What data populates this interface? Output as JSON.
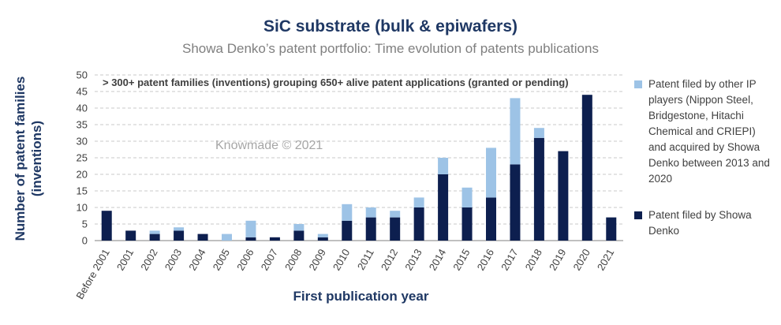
{
  "chart_data": {
    "type": "bar",
    "stacked": true,
    "title": "SiC substrate (bulk & epiwafers)",
    "subtitle": "Showa Denko’s patent portfolio: Time evolution of patents publications",
    "xlabel": "First publication year",
    "ylabel_lines": [
      "Number of patent families",
      "(inventions)"
    ],
    "ylim": [
      0,
      50
    ],
    "yticks": [
      0,
      5,
      10,
      15,
      20,
      25,
      30,
      35,
      40,
      45,
      50
    ],
    "grid": true,
    "legend_position": "right",
    "annotation": "> 300+ patent families (inventions) grouping 650+ alive patent applications (granted or pending)",
    "watermark": "Knowmade © 2021",
    "categories": [
      "Before 2001",
      "2001",
      "2002",
      "2003",
      "2004",
      "2005",
      "2006",
      "2007",
      "2008",
      "2009",
      "2010",
      "2011",
      "2012",
      "2013",
      "2014",
      "2015",
      "2016",
      "2017",
      "2018",
      "2019",
      "2020",
      "2021"
    ],
    "series": [
      {
        "name": "Patent filed by Showa Denko",
        "color": "#0d1f4f",
        "values": [
          9,
          3,
          2,
          3,
          2,
          0,
          1,
          1,
          3,
          1,
          6,
          7,
          7,
          10,
          20,
          10,
          13,
          23,
          31,
          27,
          44,
          7
        ]
      },
      {
        "name": "Patent filed by other IP players (Nippon Steel, Bridgestone, Hitachi Chemical and CRIEPI) and acquired by Showa Denko between 2013 and 2020",
        "color": "#9dc3e6",
        "values": [
          0,
          0,
          1,
          1,
          0,
          2,
          5,
          0,
          2,
          1,
          5,
          3,
          2,
          3,
          5,
          6,
          15,
          20,
          3,
          0,
          0,
          0
        ]
      }
    ]
  }
}
